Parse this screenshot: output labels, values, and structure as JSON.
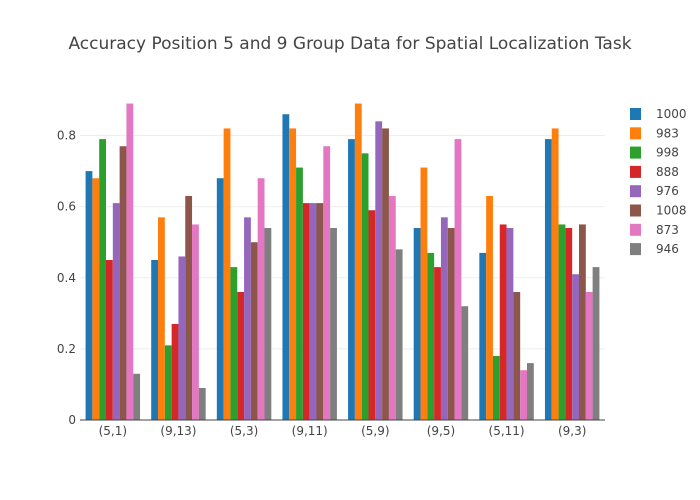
{
  "chart_data": {
    "type": "bar",
    "title": "Accuracy Position 5 and 9 Group Data for Spatial Localization Task",
    "xlabel": "",
    "ylabel": "",
    "ylim": [
      0,
      0.9
    ],
    "yticks": [
      {
        "value": 0,
        "label": "0"
      },
      {
        "value": 0.2,
        "label": "0.2"
      },
      {
        "value": 0.4,
        "label": "0.4"
      },
      {
        "value": 0.6,
        "label": "0.6"
      },
      {
        "value": 0.8,
        "label": "0.8"
      }
    ],
    "grid": true,
    "legend_position": "right",
    "categories": [
      "(5,1)",
      "(9,13)",
      "(5,3)",
      "(9,11)",
      "(5,9)",
      "(9,5)",
      "(5,11)",
      "(9,3)"
    ],
    "series": [
      {
        "name": "1000",
        "color": "#1f77b4",
        "values": [
          0.7,
          0.45,
          0.68,
          0.86,
          0.79,
          0.54,
          0.47,
          0.79
        ]
      },
      {
        "name": "983",
        "color": "#ff7f0e",
        "values": [
          0.68,
          0.57,
          0.82,
          0.82,
          0.89,
          0.71,
          0.63,
          0.82
        ]
      },
      {
        "name": "998",
        "color": "#2ca02c",
        "values": [
          0.79,
          0.21,
          0.43,
          0.71,
          0.75,
          0.47,
          0.18,
          0.55
        ]
      },
      {
        "name": "888",
        "color": "#d62728",
        "values": [
          0.45,
          0.27,
          0.36,
          0.61,
          0.59,
          0.43,
          0.55,
          0.54
        ]
      },
      {
        "name": "976",
        "color": "#9467bd",
        "values": [
          0.61,
          0.46,
          0.57,
          0.61,
          0.84,
          0.57,
          0.54,
          0.41
        ]
      },
      {
        "name": "1008",
        "color": "#8c564b",
        "values": [
          0.77,
          0.63,
          0.5,
          0.61,
          0.82,
          0.54,
          0.36,
          0.55
        ]
      },
      {
        "name": "873",
        "color": "#e377c2",
        "values": [
          0.89,
          0.55,
          0.68,
          0.77,
          0.63,
          0.79,
          0.14,
          0.36
        ]
      },
      {
        "name": "946",
        "color": "#7f7f7f",
        "values": [
          0.13,
          0.09,
          0.54,
          0.54,
          0.48,
          0.32,
          0.16,
          0.43
        ]
      }
    ]
  }
}
